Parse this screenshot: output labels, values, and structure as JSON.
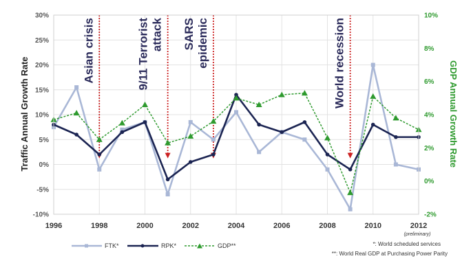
{
  "chart_data": {
    "type": "line",
    "x": [
      1996,
      1997,
      1998,
      1999,
      2000,
      2001,
      2002,
      2003,
      2004,
      2005,
      2006,
      2007,
      2008,
      2009,
      2010,
      2011,
      2012
    ],
    "xticks": [
      "1996",
      "1998",
      "2000",
      "2002",
      "2004",
      "2006",
      "2008",
      "2010",
      "2012"
    ],
    "x_note": "(preliminary)",
    "ylabel": "Traffic Annual Growth Rate",
    "ylim": [
      -10,
      30
    ],
    "yticks": [
      "-10%",
      "-5%",
      "0%",
      "5%",
      "10%",
      "15%",
      "20%",
      "25%",
      "30%"
    ],
    "y2label": "GDP Annual Growth Rate",
    "y2lim": [
      -2,
      10
    ],
    "y2ticks": [
      "-2%",
      "0%",
      "2%",
      "4%",
      "6%",
      "8%",
      "10%"
    ],
    "series": [
      {
        "name": "FTK*",
        "axis": "left",
        "color": "#a9b7d6",
        "style": "solid",
        "values": [
          7.5,
          15.5,
          -1.0,
          7.0,
          8.5,
          -6.0,
          8.5,
          5.0,
          10.5,
          2.5,
          6.5,
          5.0,
          -1.0,
          -9.0,
          20.0,
          0.0,
          -1.0
        ]
      },
      {
        "name": "RPK*",
        "axis": "left",
        "color": "#1b2452",
        "style": "solid",
        "values": [
          8.0,
          6.0,
          2.0,
          6.5,
          8.5,
          -3.0,
          0.5,
          2.0,
          14.0,
          8.0,
          6.5,
          8.5,
          2.0,
          -1.0,
          8.0,
          5.5,
          5.5
        ]
      },
      {
        "name": "GDP**",
        "axis": "right",
        "color": "#2e9a2e",
        "style": "dashed",
        "values": [
          3.7,
          4.1,
          2.5,
          3.5,
          4.6,
          2.3,
          2.7,
          3.6,
          5.0,
          4.6,
          5.2,
          5.3,
          2.6,
          -0.7,
          5.1,
          3.8,
          3.1
        ]
      }
    ],
    "annotations": [
      {
        "year": 1998,
        "lines": [
          "Asian crisis"
        ]
      },
      {
        "year": 2001,
        "lines": [
          "9/11 Terrorist",
          "attack"
        ]
      },
      {
        "year": 2003,
        "lines": [
          "SARS",
          "epidemic"
        ]
      },
      {
        "year": 2009,
        "lines": [
          "World recession"
        ]
      }
    ],
    "notes": [
      "*: World scheduled services",
      "**: World Real GDP at Purchasing Power Parity"
    ],
    "legend_position": "bottom",
    "grid": true,
    "colors": {
      "grid": "#e2e2e2",
      "annotation_arrow": "#cc2222",
      "background": "#ffffff"
    }
  }
}
